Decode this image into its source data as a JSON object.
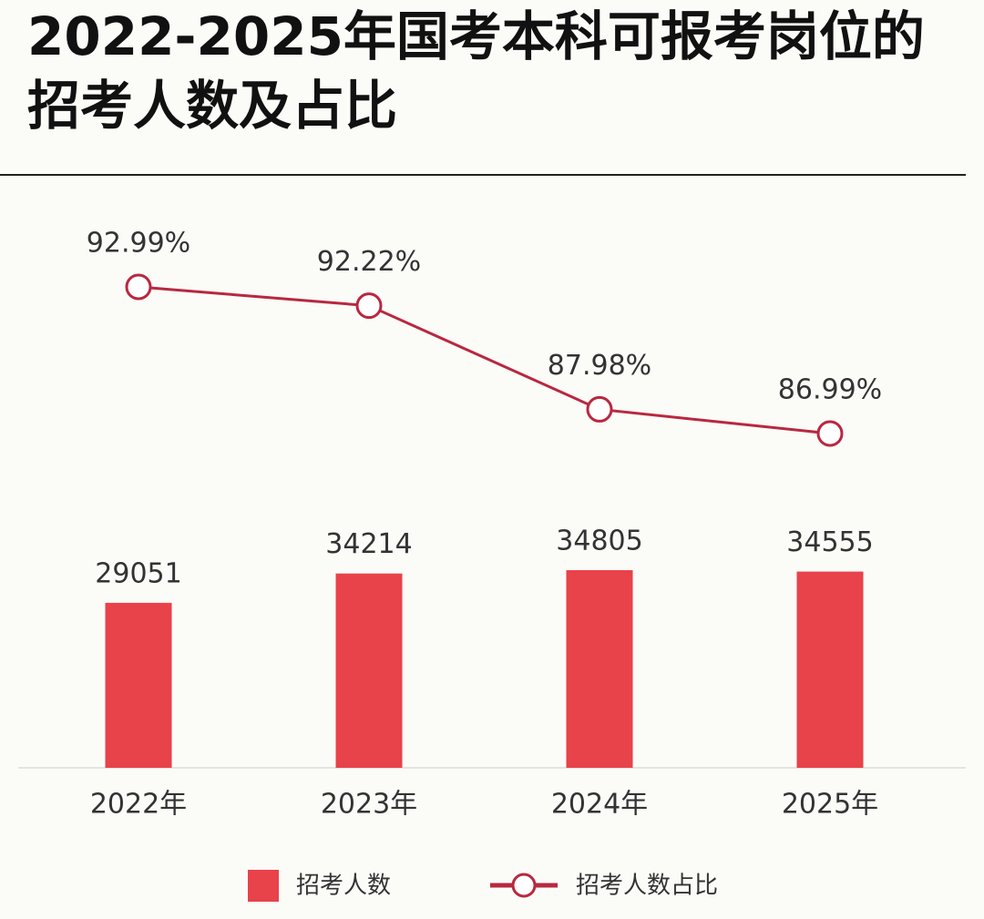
{
  "chart_data": {
    "type": "combo",
    "title": "2022-2025年国考本科可报考岗位的招考人数及占比",
    "categories": [
      "2022年",
      "2023年",
      "2024年",
      "2025年"
    ],
    "series": [
      {
        "name": "招考人数",
        "type": "bar",
        "color": "#e8424a",
        "values": [
          29051,
          34214,
          34805,
          34555
        ]
      },
      {
        "name": "招考人数占比",
        "type": "line",
        "color": "#b8283f",
        "values": [
          92.99,
          92.22,
          87.98,
          86.99
        ],
        "value_labels": [
          "92.99%",
          "92.22%",
          "87.98%",
          "86.99%"
        ]
      }
    ]
  }
}
